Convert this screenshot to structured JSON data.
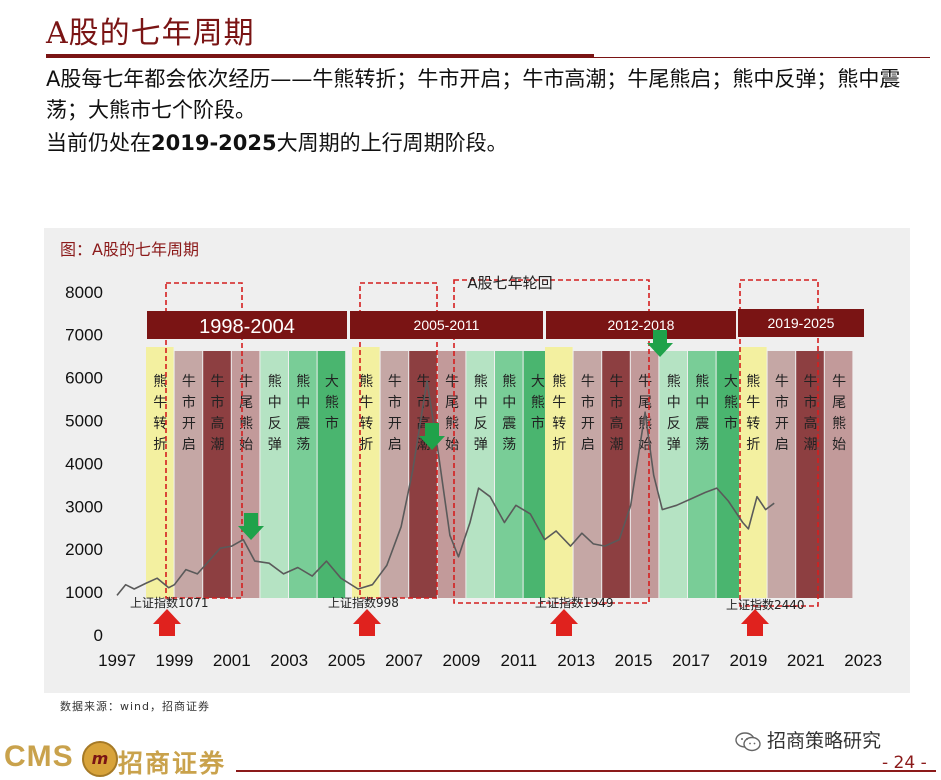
{
  "page": {
    "title": "A股的七年周期",
    "intro_line1": "A股每七年都会依次经历——牛熊转折；牛市开启；牛市高潮；牛尾熊启；熊中反弹；熊中震荡；大熊市七个阶段。",
    "intro_line2_prefix": "当前仍处在",
    "intro_line2_bold": "2019-2025",
    "intro_line2_suffix": "大周期的上行周期阶段。",
    "source": "数据来源：wind，招商证券",
    "logo_text": "CMS",
    "logo_cn": "招商证券",
    "wechat_label": "招商策略研究",
    "page_number": "- 24 -"
  },
  "chart_data": {
    "type": "line",
    "title": "图：A股的七年周期",
    "subtitle": "A股七年轮回",
    "ylim": [
      0,
      8000
    ],
    "yticks": [
      0,
      1000,
      2000,
      3000,
      4000,
      5000,
      6000,
      7000,
      8000
    ],
    "xticks": [
      1997,
      1999,
      2001,
      2003,
      2005,
      2007,
      2009,
      2011,
      2013,
      2015,
      2017,
      2019,
      2021,
      2023
    ],
    "xlim": [
      1997,
      2023.5
    ],
    "series": [
      {
        "name": "",
        "color": "#5a5a5a",
        "points": [
          [
            1997.0,
            900
          ],
          [
            1997.3,
            1150
          ],
          [
            1997.6,
            1050
          ],
          [
            1998.0,
            1180
          ],
          [
            1998.4,
            1300
          ],
          [
            1998.8,
            1080
          ],
          [
            1999.0,
            1150
          ],
          [
            1999.4,
            1500
          ],
          [
            1999.8,
            1400
          ],
          [
            2000.2,
            1700
          ],
          [
            2000.6,
            2000
          ],
          [
            2001.0,
            2050
          ],
          [
            2001.4,
            2200
          ],
          [
            2001.8,
            1700
          ],
          [
            2002.3,
            1650
          ],
          [
            2002.8,
            1400
          ],
          [
            2003.3,
            1550
          ],
          [
            2003.8,
            1350
          ],
          [
            2004.3,
            1700
          ],
          [
            2004.8,
            1300
          ],
          [
            2005.4,
            1050
          ],
          [
            2005.9,
            1150
          ],
          [
            2006.4,
            1600
          ],
          [
            2006.9,
            2500
          ],
          [
            2007.3,
            3800
          ],
          [
            2007.8,
            5900
          ],
          [
            2008.2,
            4200
          ],
          [
            2008.6,
            2300
          ],
          [
            2008.9,
            1800
          ],
          [
            2009.3,
            2600
          ],
          [
            2009.6,
            3400
          ],
          [
            2010.0,
            3200
          ],
          [
            2010.5,
            2600
          ],
          [
            2010.9,
            3000
          ],
          [
            2011.4,
            2800
          ],
          [
            2011.9,
            2200
          ],
          [
            2012.3,
            2400
          ],
          [
            2012.8,
            2050
          ],
          [
            2013.2,
            2350
          ],
          [
            2013.6,
            2100
          ],
          [
            2014.0,
            2050
          ],
          [
            2014.5,
            2200
          ],
          [
            2014.9,
            3000
          ],
          [
            2015.4,
            5170
          ],
          [
            2015.7,
            3700
          ],
          [
            2016.0,
            2900
          ],
          [
            2016.5,
            3000
          ],
          [
            2017.0,
            3150
          ],
          [
            2017.5,
            3300
          ],
          [
            2017.9,
            3400
          ],
          [
            2018.3,
            3100
          ],
          [
            2018.8,
            2600
          ],
          [
            2019.0,
            2450
          ],
          [
            2019.3,
            3200
          ],
          [
            2019.6,
            2900
          ],
          [
            2019.9,
            3050
          ]
        ]
      }
    ],
    "header_bars": [
      {
        "label": "1998-2004"
      },
      {
        "label": "2005-2011"
      },
      {
        "label": "2012-2018"
      },
      {
        "label": "2019-2025"
      }
    ],
    "phases": [
      {
        "label": "熊牛转折",
        "color": "#f3f0a0"
      },
      {
        "label": "牛市开启",
        "color": "#c5a7a5"
      },
      {
        "label": "牛市高潮",
        "color": "#8d3f41"
      },
      {
        "label": "牛尾熊始",
        "color": "#c29a9a"
      },
      {
        "label": "熊中反弹",
        "color": "#b5e3c3"
      },
      {
        "label": "熊中震荡",
        "color": "#79cd97"
      },
      {
        "label": "大熊市",
        "color": "#4ab56f"
      }
    ],
    "annotations": [
      {
        "text": "上证指数1071"
      },
      {
        "text": "上证指数998"
      },
      {
        "text": "上证指数1949"
      },
      {
        "text": "上证指数2440"
      }
    ]
  }
}
